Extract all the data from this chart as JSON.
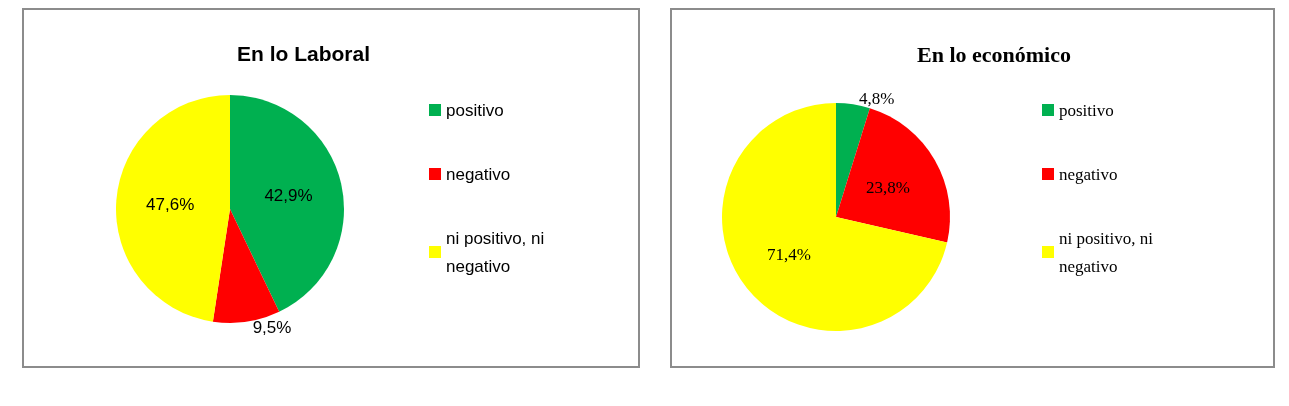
{
  "chart_data": [
    {
      "type": "pie",
      "title": "En lo Laboral",
      "categories": [
        "positivo",
        "negativo",
        "ni positivo, ni negativo"
      ],
      "values": [
        42.9,
        9.5,
        47.6
      ],
      "colors": [
        "#00b050",
        "#ff0000",
        "#ffff00"
      ],
      "value_labels": [
        "42,9%",
        "9,5%",
        "47,6%"
      ],
      "legend": "right"
    },
    {
      "type": "pie",
      "title": "En lo económico",
      "categories": [
        "positivo",
        "negativo",
        "ni positivo, ni negativo"
      ],
      "values": [
        4.8,
        23.8,
        71.4
      ],
      "colors": [
        "#00b050",
        "#ff0000",
        "#ffff00"
      ],
      "value_labels": [
        "4,8%",
        "23,8%",
        "71,4%"
      ],
      "legend": "right"
    }
  ]
}
